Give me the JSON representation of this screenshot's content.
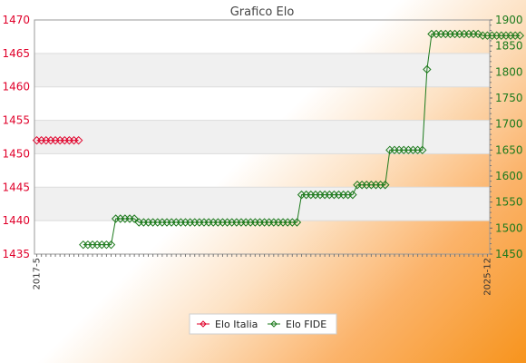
{
  "chart_data": {
    "type": "line",
    "title": "Grafico Elo",
    "left_axis": {
      "ylim": [
        1435,
        1470
      ],
      "ticks": [
        1435,
        1440,
        1445,
        1450,
        1455,
        1460,
        1465,
        1470
      ],
      "color": "#e0002a"
    },
    "right_axis": {
      "ylim": [
        1450,
        1900
      ],
      "ticks": [
        1450,
        1500,
        1550,
        1600,
        1650,
        1700,
        1750,
        1800,
        1850,
        1900
      ],
      "color": "#1c7a1c"
    },
    "x_count": 98,
    "first_x_label": "2017-5",
    "last_x_label": "2025-12",
    "grid": true,
    "legend_position": "bottom",
    "series": [
      {
        "name": "Elo Italia",
        "axis": "left",
        "color": "#e0002a",
        "start": 0,
        "values": [
          1452,
          1452,
          1452,
          1452,
          1452,
          1452,
          1452,
          1452,
          1452,
          1452
        ]
      },
      {
        "name": "Elo FIDE",
        "axis": "right",
        "color": "#1c7a1c",
        "start": 10,
        "values": [
          1468,
          1468,
          1468,
          1468,
          1468,
          1468,
          1468,
          1518,
          1518,
          1518,
          1518,
          1518,
          1511,
          1511,
          1511,
          1511,
          1511,
          1511,
          1511,
          1511,
          1511,
          1511,
          1511,
          1511,
          1511,
          1511,
          1511,
          1511,
          1511,
          1511,
          1511,
          1511,
          1511,
          1511,
          1511,
          1511,
          1511,
          1511,
          1511,
          1511,
          1511,
          1511,
          1511,
          1511,
          1511,
          1511,
          1511,
          1564,
          1564,
          1564,
          1564,
          1564,
          1564,
          1564,
          1564,
          1564,
          1564,
          1564,
          1564,
          1583,
          1583,
          1583,
          1583,
          1583,
          1583,
          1583,
          1650,
          1650,
          1650,
          1650,
          1650,
          1650,
          1650,
          1650,
          1805,
          1873,
          1873,
          1873,
          1873,
          1873,
          1873,
          1873,
          1873,
          1873,
          1873,
          1873,
          1870,
          1870,
          1870,
          1870,
          1870,
          1870,
          1870,
          1870,
          1870
        ]
      }
    ]
  }
}
